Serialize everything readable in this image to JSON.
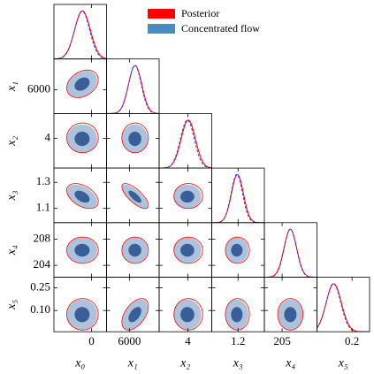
{
  "chart_data": {
    "type": "corner",
    "variables": [
      {
        "label": "x₀",
        "lim": [
          -1.0,
          0.4
        ],
        "xticks": [
          0
        ],
        "yticks": []
      },
      {
        "label": "x₁",
        "lim": [
          5000,
          7300
        ],
        "xticks": [
          6000
        ],
        "yticks": [
          6000
        ]
      },
      {
        "label": "x₂",
        "lim": [
          2.8,
          5.0
        ],
        "xticks": [
          4
        ],
        "yticks": [
          4
        ]
      },
      {
        "label": "x₃",
        "lim": [
          0.99,
          1.41
        ],
        "xticks": [
          1.2
        ],
        "yticks": [
          1.1,
          1.3
        ]
      },
      {
        "label": "x₄",
        "lim": [
          202.2,
          210.5
        ],
        "xticks": [
          205
        ],
        "yticks": [
          204,
          208
        ]
      },
      {
        "label": "x₅",
        "lim": [
          -0.04,
          0.32
        ],
        "xticks": [
          0.2
        ],
        "yticks": [
          {
            "value": 0.1,
            "label": "0.10"
          },
          0.25
        ]
      }
    ],
    "series": [
      {
        "name": "Posterior",
        "color": "#ff0000",
        "means": [
          -0.24,
          6250,
          4.02,
          1.195,
          206.3,
          0.075
        ],
        "stds": [
          0.21,
          290,
          0.3,
          0.048,
          1.0,
          0.052
        ]
      },
      {
        "name": "Concentrated flow",
        "color": "#4b8bc4",
        "line_color": "#3333dd",
        "contour_colors": [
          "#afc2dc",
          "#3a5e98"
        ],
        "means": [
          -0.25,
          6240,
          3.98,
          1.19,
          206.3,
          0.073
        ],
        "stds": [
          0.2,
          280,
          0.29,
          0.046,
          0.97,
          0.05
        ]
      }
    ],
    "corr": [
      [],
      [
        0.3
      ],
      [
        0.0,
        0.0
      ],
      [
        -0.45,
        -0.75,
        0.0
      ],
      [
        0.0,
        0.0,
        0.0,
        0.0
      ],
      [
        0.0,
        0.5,
        0.0,
        0.0,
        0.0
      ]
    ]
  }
}
